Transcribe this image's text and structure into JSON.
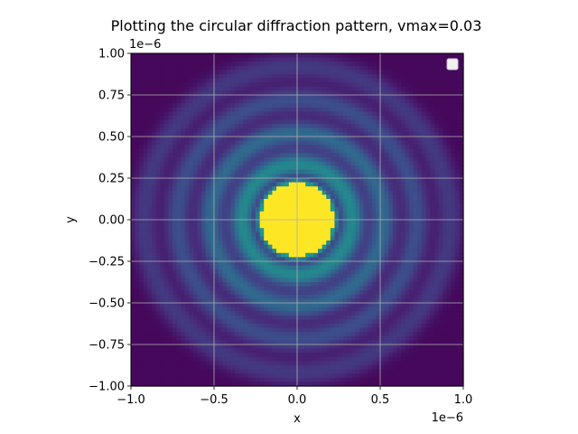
{
  "chart_data": {
    "type": "heatmap",
    "title": "Plotting the circular diffraction pattern, vmax=0.03",
    "xlabel": "x",
    "ylabel": "y",
    "x_offset_text": "1e−6",
    "y_offset_text": "1e−6",
    "xlim": [
      -1.0,
      1.0
    ],
    "ylim": [
      -1.0,
      1.0
    ],
    "xticks": [
      -1.0,
      -0.5,
      0.0,
      0.5,
      1.0
    ],
    "xtick_labels": [
      "−1.0",
      "−0.5",
      "0.0",
      "0.5",
      "1.0"
    ],
    "yticks": [
      1.0,
      0.75,
      0.5,
      0.25,
      0.0,
      -0.25,
      -0.5,
      -0.75,
      -1.0
    ],
    "ytick_labels": [
      "1.00",
      "0.75",
      "0.50",
      "0.25",
      "0.00",
      "−0.25",
      "−0.50",
      "−0.75",
      "−1.00"
    ],
    "colormap": "viridis",
    "vmin": 0,
    "vmax": 0.03,
    "grid": true,
    "legend": "top-right (empty)",
    "central_disk_radius": 0.22,
    "ring_radii": [
      0.33,
      0.52,
      0.72,
      0.92
    ],
    "grid_resolution": 80
  }
}
